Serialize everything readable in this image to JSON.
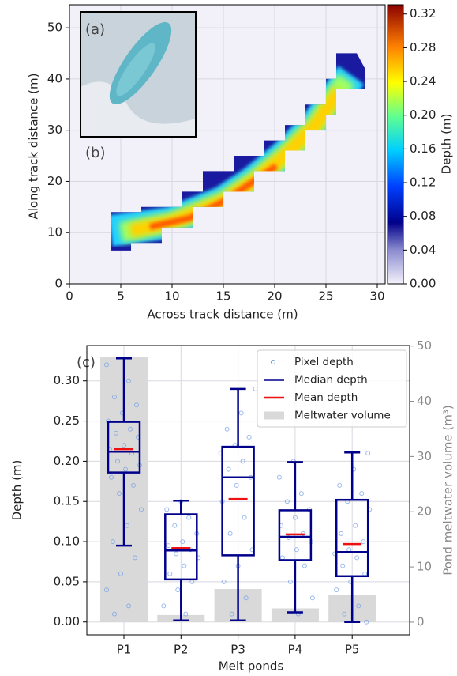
{
  "chart_data": [
    {
      "type": "heatmap",
      "annotations": [
        "(a)",
        "(b)"
      ],
      "xlabel": "Across track distance (m)",
      "ylabel": "Along track distance (m)",
      "xlim": [
        0,
        30.77
      ],
      "ylim": [
        0,
        54.5
      ],
      "xticks": [
        0,
        5,
        10,
        15,
        20,
        25,
        30
      ],
      "yticks": [
        0,
        10,
        20,
        30,
        40,
        50
      ],
      "grid": true,
      "colorbar": {
        "label": "Depth (m)",
        "lim": [
          0,
          0.331
        ],
        "ticks": [
          {
            "value": 0,
            "label": "0.00"
          },
          {
            "value": 0.04,
            "label": "0.04"
          },
          {
            "value": 0.08,
            "label": "0.08"
          },
          {
            "value": 0.12,
            "label": "0.12"
          },
          {
            "value": 0.16,
            "label": "0.16"
          },
          {
            "value": 0.2,
            "label": "0.20"
          },
          {
            "value": 0.24,
            "label": "0.24"
          },
          {
            "value": 0.28,
            "label": "0.28"
          },
          {
            "value": 0.32,
            "label": "0.32"
          }
        ]
      }
    },
    {
      "type": "box",
      "annotation": "(c)",
      "xlabel": "Melt ponds",
      "ylabel": "Depth (m)",
      "y2label": "Pond meltwater volume (m³)",
      "categories": [
        "P1",
        "P2",
        "P3",
        "P4",
        "P5"
      ],
      "ylim": [
        -0.016,
        0.344
      ],
      "y2lim": [
        -2.3,
        50.1
      ],
      "yticks": [
        {
          "value": 0,
          "label": "0.00"
        },
        {
          "value": 0.05,
          "label": "0.05"
        },
        {
          "value": 0.1,
          "label": "0.10"
        },
        {
          "value": 0.15,
          "label": "0.15"
        },
        {
          "value": 0.2,
          "label": "0.20"
        },
        {
          "value": 0.25,
          "label": "0.25"
        },
        {
          "value": 0.3,
          "label": "0.30"
        }
      ],
      "y2ticks": [
        0,
        10,
        20,
        30,
        40,
        50
      ],
      "grid": true,
      "legend": "upper right",
      "series": [
        {
          "name": "Pixel depth",
          "color": "#6f9be8",
          "values": [
            [
              0.32,
              0.3,
              0.28,
              0.27,
              0.26,
              0.25,
              0.24,
              0.235,
              0.23,
              0.22,
              0.215,
              0.21,
              0.2,
              0.195,
              0.19,
              0.18,
              0.17,
              0.16,
              0.14,
              0.12,
              0.1,
              0.08,
              0.06,
              0.04,
              0.02,
              0.01
            ],
            [
              0.15,
              0.14,
              0.13,
              0.12,
              0.11,
              0.1,
              0.095,
              0.09,
              0.085,
              0.08,
              0.07,
              0.06,
              0.05,
              0.04,
              0.02,
              0.01
            ],
            [
              0.29,
              0.26,
              0.24,
              0.23,
              0.22,
              0.21,
              0.2,
              0.19,
              0.18,
              0.17,
              0.15,
              0.13,
              0.11,
              0.09,
              0.07,
              0.05,
              0.03,
              0.01
            ],
            [
              0.2,
              0.18,
              0.16,
              0.15,
              0.14,
              0.13,
              0.12,
              0.11,
              0.105,
              0.1,
              0.09,
              0.08,
              0.07,
              0.05,
              0.03,
              0.01
            ],
            [
              0.21,
              0.19,
              0.17,
              0.16,
              0.15,
              0.14,
              0.12,
              0.11,
              0.1,
              0.09,
              0.085,
              0.08,
              0.07,
              0.06,
              0.05,
              0.04,
              0.02,
              0.01,
              0.0
            ]
          ]
        },
        {
          "name": "Median depth",
          "color": "#00008b",
          "values": [
            0.212,
            0.089,
            0.18,
            0.106,
            0.087
          ],
          "q1": [
            0.186,
            0.053,
            0.083,
            0.077,
            0.057
          ],
          "q3": [
            0.249,
            0.134,
            0.218,
            0.139,
            0.152
          ],
          "whislo": [
            0.095,
            0.002,
            0.002,
            0.012,
            0.0
          ],
          "whishi": [
            0.328,
            0.151,
            0.29,
            0.199,
            0.211
          ]
        },
        {
          "name": "Mean depth",
          "color": "#ee1111",
          "values": [
            0.215,
            0.092,
            0.153,
            0.109,
            0.097
          ]
        },
        {
          "name": "Meltwater volume",
          "color": "#d9d9d9",
          "axis": "y2",
          "values": [
            48,
            1.3,
            6,
            2.5,
            5
          ]
        }
      ]
    }
  ]
}
